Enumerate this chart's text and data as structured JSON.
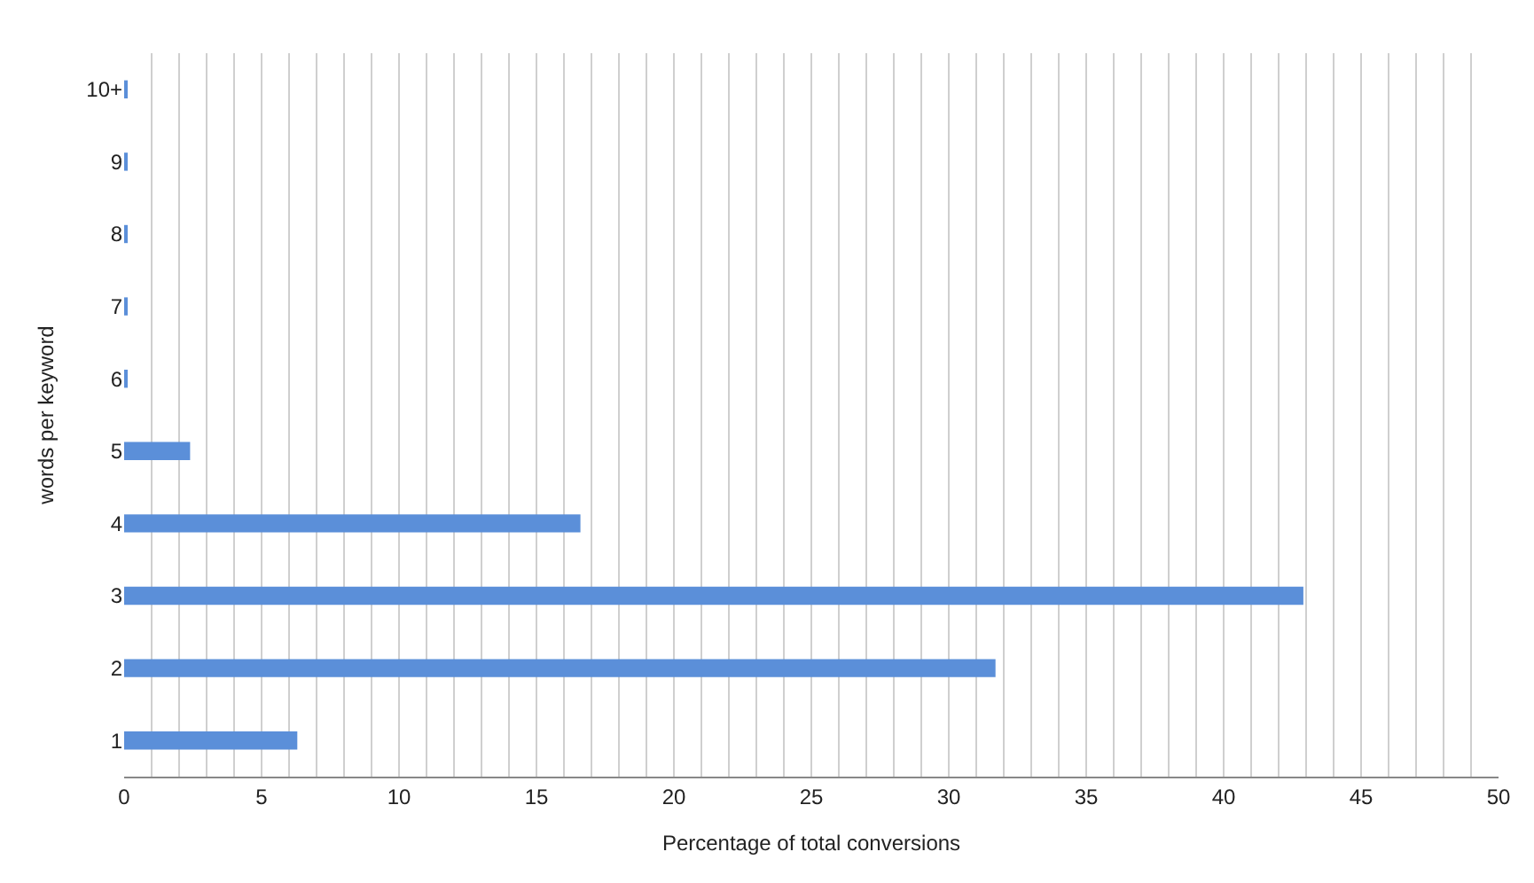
{
  "chart_data": {
    "type": "bar",
    "orientation": "horizontal",
    "xlabel": "Percentage of total conversions",
    "ylabel": "words per keyword",
    "categories": [
      "10+",
      "9",
      "8",
      "7",
      "6",
      "5",
      "4",
      "3",
      "2",
      "1"
    ],
    "values": [
      0.1,
      0.1,
      0.1,
      0.1,
      0.1,
      2.4,
      16.6,
      42.9,
      31.7,
      6.3
    ],
    "color": "#5b8fd9",
    "xlim": [
      0,
      50
    ],
    "xticks": [
      0,
      {
        "value": 1,
        "label": null
      },
      {
        "value": 2,
        "label": null
      },
      {
        "value": 3,
        "label": null
      },
      {
        "value": 4,
        "label": null
      },
      5,
      {
        "value": 6,
        "label": null
      },
      {
        "value": 7,
        "label": null
      },
      {
        "value": 8,
        "label": null
      },
      {
        "value": 9,
        "label": null
      },
      10,
      {
        "value": 11,
        "label": null
      },
      {
        "value": 12,
        "label": null
      },
      {
        "value": 13,
        "label": null
      },
      {
        "value": 14,
        "label": null
      },
      15,
      {
        "value": 16,
        "label": null
      },
      {
        "value": 17,
        "label": null
      },
      {
        "value": 18,
        "label": null
      },
      {
        "value": 19,
        "label": null
      },
      20,
      {
        "value": 21,
        "label": null
      },
      {
        "value": 22,
        "label": null
      },
      {
        "value": 23,
        "label": null
      },
      {
        "value": 24,
        "label": null
      },
      25,
      {
        "value": 26,
        "label": null
      },
      {
        "value": 27,
        "label": null
      },
      {
        "value": 28,
        "label": null
      },
      {
        "value": 29,
        "label": null
      },
      30,
      {
        "value": 31,
        "label": null
      },
      {
        "value": 32,
        "label": null
      },
      {
        "value": 33,
        "label": null
      },
      {
        "value": 34,
        "label": null
      },
      35,
      {
        "value": 36,
        "label": null
      },
      {
        "value": 37,
        "label": null
      },
      {
        "value": 38,
        "label": null
      },
      {
        "value": 39,
        "label": null
      },
      40,
      {
        "value": 41,
        "label": null
      },
      {
        "value": 42,
        "label": null
      },
      {
        "value": 43,
        "label": null
      },
      {
        "value": 44,
        "label": null
      },
      45,
      {
        "value": 46,
        "label": null
      },
      {
        "value": 47,
        "label": null
      },
      {
        "value": 48,
        "label": null
      },
      {
        "value": 49,
        "label": null
      },
      50
    ],
    "grid": "x"
  }
}
